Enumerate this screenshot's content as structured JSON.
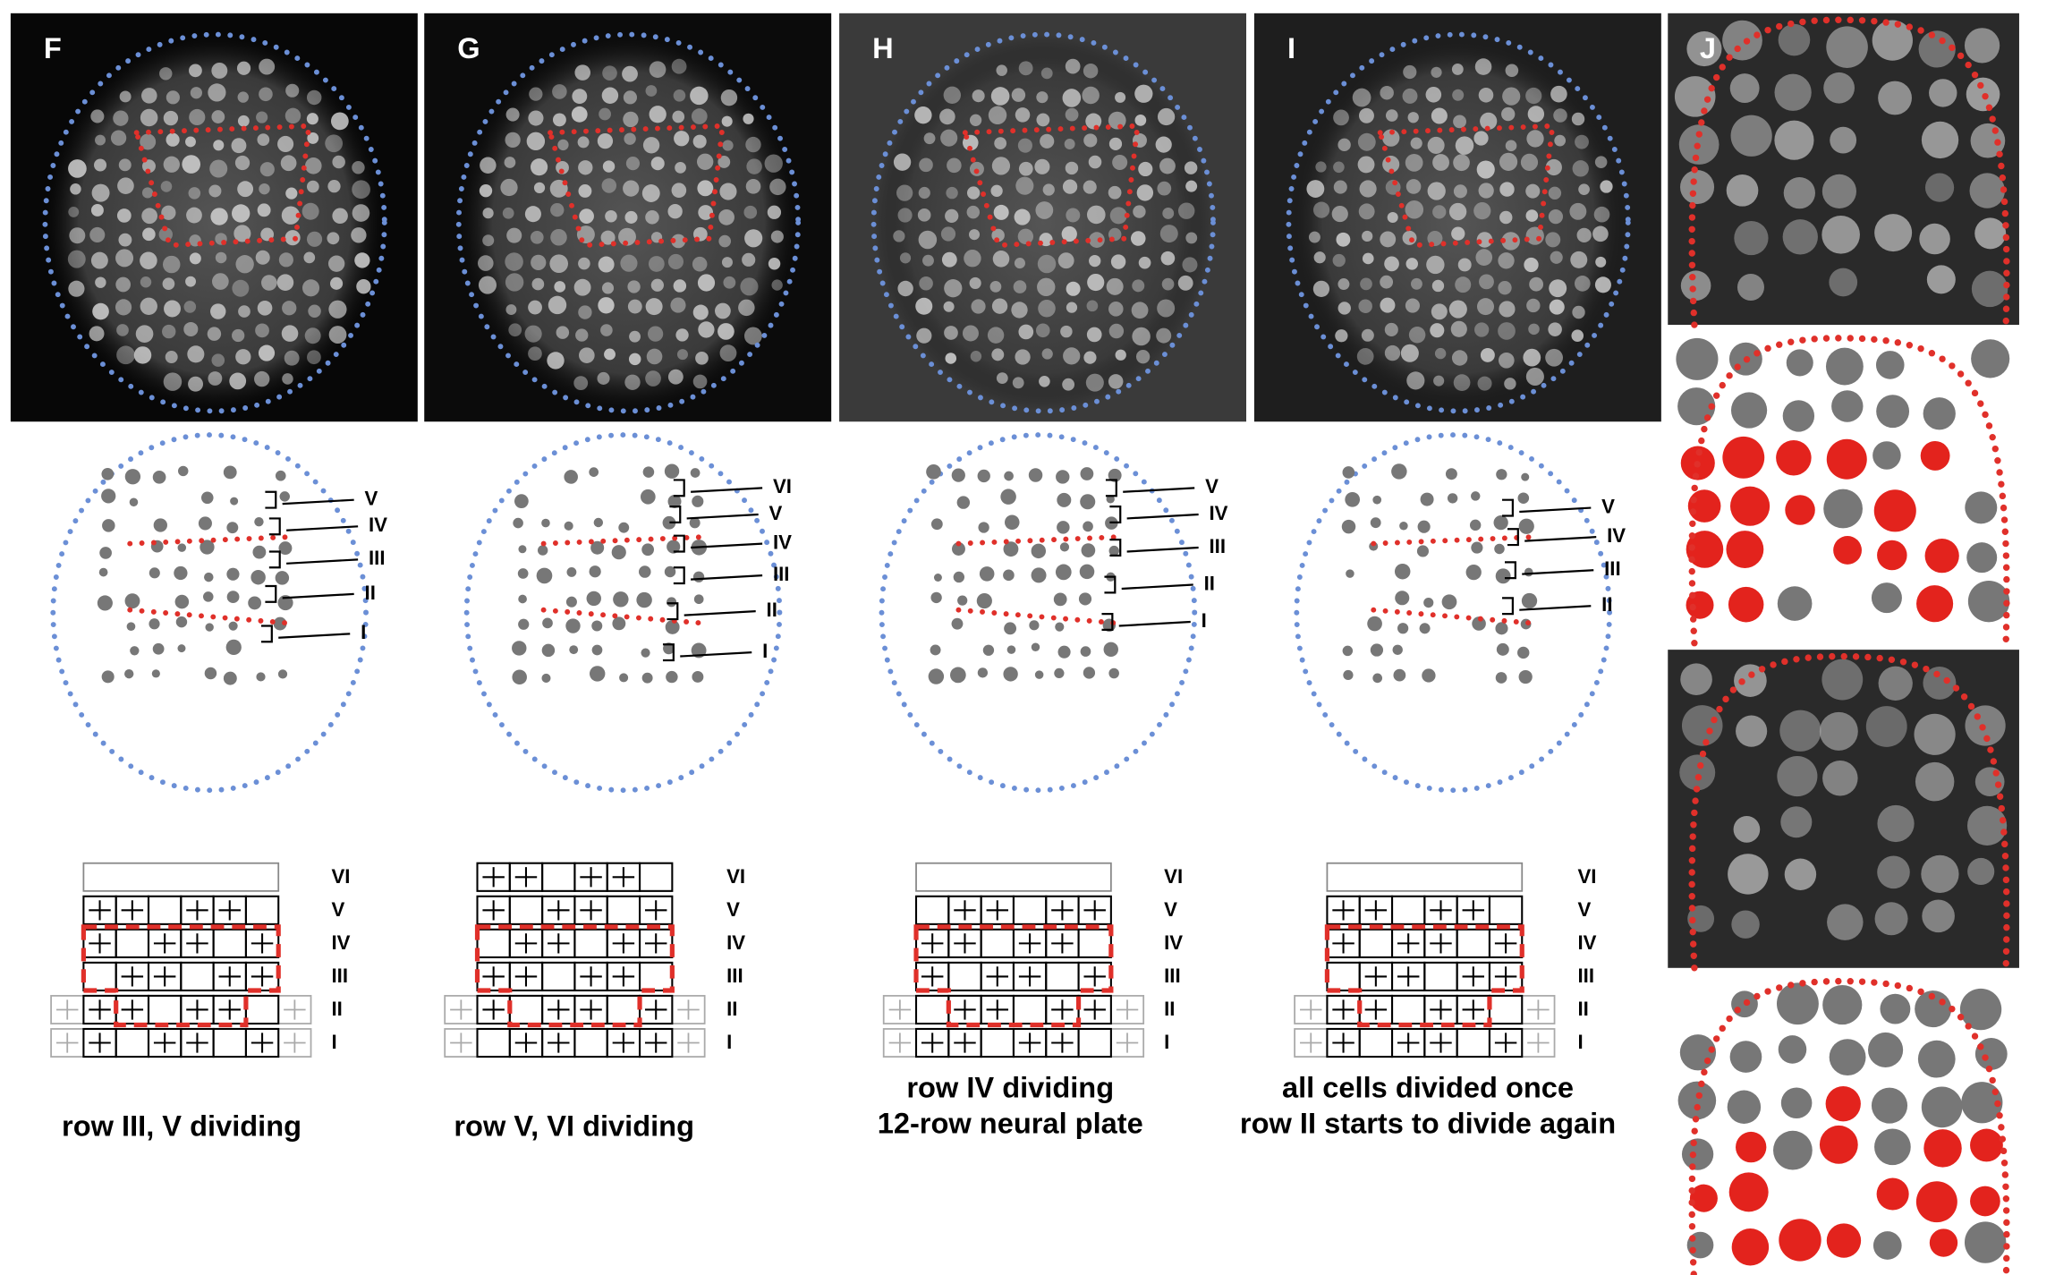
{
  "panels": [
    {
      "letter": "F",
      "annotations": [
        "V",
        "IV",
        "III",
        "II",
        "I"
      ],
      "grid_rows": [
        "VI",
        "V",
        "IV",
        "III",
        "II",
        "I"
      ],
      "caption": [
        "row III, V dividing"
      ]
    },
    {
      "letter": "G",
      "annotations": [
        "VI",
        "V",
        "IV",
        "III",
        "II",
        "I"
      ],
      "grid_rows": [
        "VI",
        "V",
        "IV",
        "III",
        "II",
        "I"
      ],
      "caption": [
        "row V, VI dividing"
      ]
    },
    {
      "letter": "H",
      "annotations": [
        "V",
        "IV",
        "III",
        "II",
        "I"
      ],
      "grid_rows": [
        "VI",
        "V",
        "IV",
        "III",
        "II",
        "I"
      ],
      "caption": [
        "row IV dividing",
        "12-row neural plate"
      ]
    },
    {
      "letter": "I",
      "annotations": [
        "V",
        "IV",
        "III",
        "II"
      ],
      "grid_rows": [
        "VI",
        "V",
        "IV",
        "III",
        "II",
        "I"
      ],
      "caption": [
        "all cells divided once",
        "row II starts to divide again"
      ]
    }
  ],
  "panel_j": {
    "letter": "J"
  }
}
